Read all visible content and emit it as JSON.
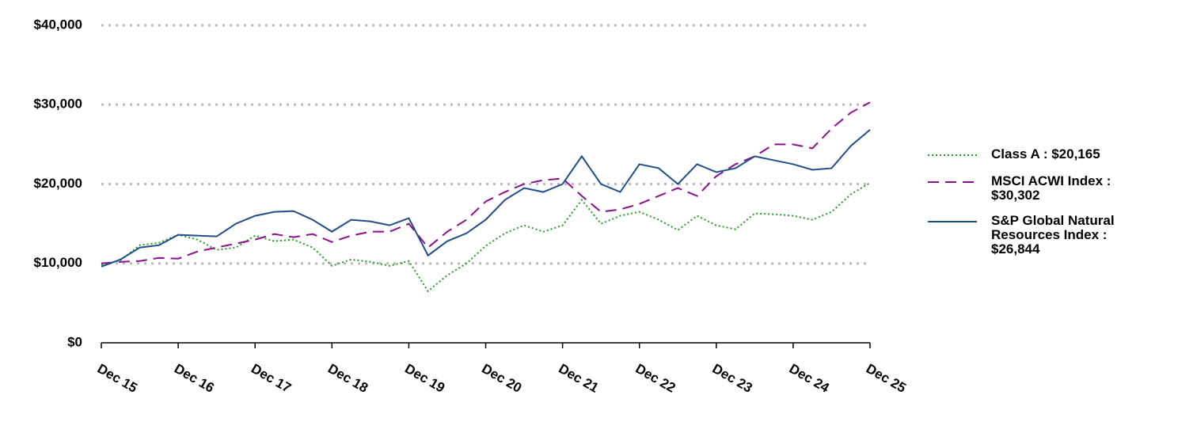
{
  "chart_data": {
    "type": "line",
    "categories": [
      "Dec 15",
      null,
      null,
      null,
      "Dec 16",
      null,
      null,
      null,
      "Dec 17",
      null,
      null,
      null,
      "Dec 18",
      null,
      null,
      null,
      "Dec 19",
      null,
      null,
      null,
      "Dec 20",
      null,
      null,
      null,
      "Dec 21",
      null,
      null,
      null,
      "Dec 22",
      null,
      null,
      null,
      "Dec 23",
      null,
      null,
      null,
      "Dec 24",
      null,
      null,
      null,
      "Dec 25"
    ],
    "series": [
      {
        "name": "Class A : $20,165",
        "color": "#1fa01f",
        "dash": "dotted",
        "values": [
          9800,
          10400,
          12300,
          12600,
          13600,
          13000,
          11700,
          12000,
          13500,
          12800,
          13000,
          12000,
          9700,
          10500,
          10200,
          9700,
          10300,
          6500,
          8500,
          10000,
          12200,
          13800,
          14800,
          14000,
          14800,
          18000,
          15000,
          16000,
          16500,
          15500,
          14200,
          16000,
          14800,
          14300,
          16300,
          16200,
          16000,
          15500,
          16500,
          18700,
          20165
        ]
      },
      {
        "name": "MSCI ACWI Index : $30,302",
        "color": "#8e0f8e",
        "dash": "dashed",
        "values": [
          10000,
          10200,
          10300,
          10700,
          10600,
          11500,
          12000,
          12500,
          13000,
          13700,
          13300,
          13700,
          12700,
          13500,
          14000,
          14000,
          15000,
          12000,
          14000,
          15500,
          17800,
          19000,
          20000,
          20500,
          20700,
          18500,
          16500,
          16800,
          17500,
          18500,
          19500,
          18500,
          21000,
          22500,
          23500,
          25000,
          25000,
          24500,
          27000,
          29000,
          30302
        ]
      },
      {
        "name": "S&P Global Natural Resources Index : $26,844",
        "color": "#1f4e8c",
        "dash": "solid",
        "values": [
          9600,
          10500,
          12000,
          12300,
          13600,
          13500,
          13400,
          15000,
          16000,
          16500,
          16600,
          15500,
          14000,
          15500,
          15300,
          14800,
          15700,
          11000,
          12800,
          13800,
          15500,
          18000,
          19500,
          19000,
          20000,
          23500,
          20000,
          19000,
          22500,
          22000,
          20000,
          22500,
          21500,
          22000,
          23500,
          23000,
          22500,
          21800,
          22000,
          24800,
          26844
        ]
      }
    ],
    "ylim": [
      0,
      40000
    ],
    "yticks": [
      {
        "value": 0,
        "label": "$0"
      },
      {
        "value": 10000,
        "label": "$10,000"
      },
      {
        "value": 20000,
        "label": "$20,000"
      },
      {
        "value": 30000,
        "label": "$30,000"
      },
      {
        "value": 40000,
        "label": "$40,000"
      }
    ],
    "grid": true,
    "legend": "right"
  }
}
